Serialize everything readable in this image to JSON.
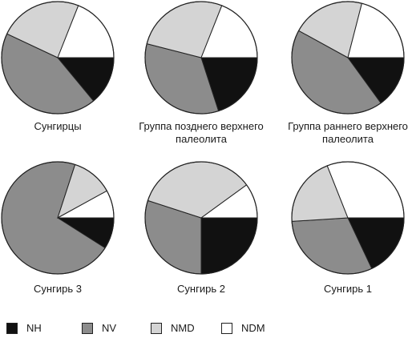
{
  "colors": {
    "NH": "#111111",
    "NV": "#8c8c8c",
    "NMD": "#d4d4d4",
    "NDM": "#ffffff",
    "outline": "#222222"
  },
  "legend": [
    {
      "key": "NH",
      "label": "NH"
    },
    {
      "key": "NV",
      "label": "NV"
    },
    {
      "key": "NMD",
      "label": "NMD"
    },
    {
      "key": "NDM",
      "label": "NDM"
    }
  ],
  "chart_data": [
    {
      "type": "pie",
      "title": "Сунгирцы",
      "categories": [
        "NH",
        "NV",
        "NMD",
        "NDM"
      ],
      "values": [
        14,
        43,
        24,
        19
      ],
      "start_angle": 0,
      "direction": "clockwise"
    },
    {
      "type": "pie",
      "title": "Группа позднего верхнего палеолита",
      "categories": [
        "NH",
        "NV",
        "NMD",
        "NDM"
      ],
      "values": [
        20,
        34,
        27,
        19
      ],
      "start_angle": 0,
      "direction": "clockwise"
    },
    {
      "type": "pie",
      "title": "Группа раннего верхнего палеолита",
      "categories": [
        "NH",
        "NV",
        "NMD",
        "NDM"
      ],
      "values": [
        15,
        43,
        21,
        21
      ],
      "start_angle": 0,
      "direction": "clockwise"
    },
    {
      "type": "pie",
      "title": "Сунгирь 3",
      "categories": [
        "NH",
        "NV",
        "NMD",
        "NDM"
      ],
      "values": [
        9,
        71,
        12,
        8
      ],
      "start_angle": 0,
      "direction": "clockwise"
    },
    {
      "type": "pie",
      "title": "Сунгирь 2",
      "categories": [
        "NH",
        "NV",
        "NMD",
        "NDM"
      ],
      "values": [
        25,
        30,
        35,
        10
      ],
      "start_angle": 0,
      "direction": "clockwise"
    },
    {
      "type": "pie",
      "title": "Сунгирь 1",
      "categories": [
        "NH",
        "NV",
        "NMD",
        "NDM"
      ],
      "values": [
        18,
        31,
        20,
        31
      ],
      "start_angle": 0,
      "direction": "clockwise"
    }
  ]
}
